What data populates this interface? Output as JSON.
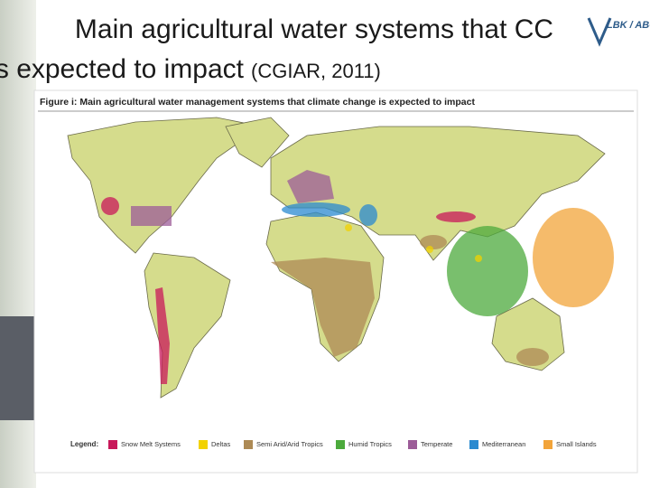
{
  "slide": {
    "title_line1": "Main agricultural water systems that CC",
    "title_line2": "is expected to impact",
    "title_source": "(CGIAR, 2011)",
    "logo": "LBK / ABC"
  },
  "figure": {
    "caption": "Figure i: Main agricultural water management systems that climate change is expected to impact",
    "legend_title": "Legend:",
    "legend": [
      {
        "label": "Snow Melt Systems",
        "color": "#c8185a"
      },
      {
        "label": "Deltas",
        "color": "#f2d200"
      },
      {
        "label": "Semi Arid/Arid Tropics",
        "color": "#ad8a55"
      },
      {
        "label": "Humid Tropics",
        "color": "#4caa3c"
      },
      {
        "label": "Temperate",
        "color": "#9c5c98"
      },
      {
        "label": "Mediterranean",
        "color": "#2a8ad0"
      },
      {
        "label": "Small Islands",
        "color": "#f2a43a"
      }
    ]
  }
}
